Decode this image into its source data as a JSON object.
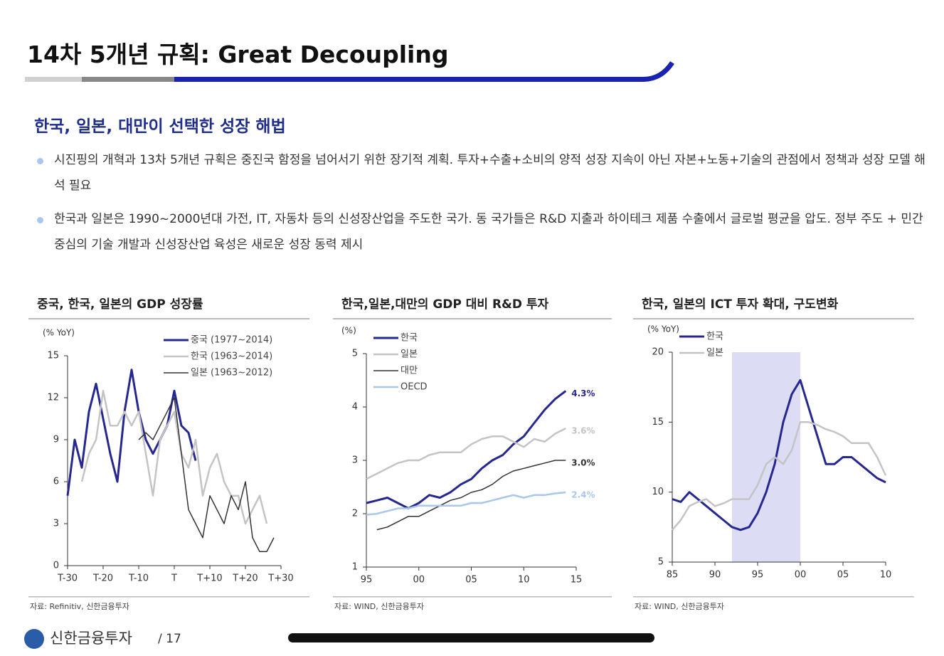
{
  "header": {
    "title": "14차 5개년 규획: Great Decoupling"
  },
  "section": {
    "heading": "한국, 일본, 대만이 선택한 성장 해법",
    "bullets": [
      "시진핑의 개혁과 13차 5개년 규획은 중진국 함정을 넘어서기 위한 장기적 계획. 투자+수출+소비의 양적 성장 지속이 아닌 자본+노동+기술의 관점에서 정책과 성장 모델 해석 필요",
      "한국과 일본은 1990~2000년대 가전, IT, 자동차 등의 신성장산업을 주도한 국가. 동 국가들은 R&D 지출과 하이테크 제품 수출에서 글로벌 평균을 압도. 정부 주도 + 민간 중심의 기술 개발과 신성장산업 육성은 새로운 성장 동력 제시"
    ]
  },
  "chart_data": [
    {
      "type": "line",
      "title": "중국, 한국, 일본의 GDP 성장률",
      "y_label": "(% YoY)",
      "source": "자료: Refinitiv, 신한금융투자",
      "legend": "upper right",
      "x": [
        -30,
        -28,
        -26,
        -24,
        -22,
        -20,
        -18,
        -16,
        -14,
        -12,
        -10,
        -8,
        -6,
        -4,
        -2,
        0,
        2,
        4,
        6,
        8,
        10,
        12,
        14,
        16,
        18,
        20,
        22,
        24,
        26,
        28,
        30
      ],
      "xlim": [
        -30,
        30
      ],
      "xticks": [
        {
          "value": -30,
          "label": "T-30"
        },
        {
          "value": -20,
          "label": "T-20"
        },
        {
          "value": -10,
          "label": "T-10"
        },
        {
          "value": 0,
          "label": "T"
        },
        {
          "value": 10,
          "label": "T+10"
        },
        {
          "value": 20,
          "label": "T+20"
        },
        {
          "value": 30,
          "label": "T+30"
        }
      ],
      "ylim": [
        0,
        15
      ],
      "yticks": [
        0,
        3,
        6,
        9,
        12,
        15
      ],
      "series": [
        {
          "name": "중국 (1977~2014)",
          "color": "#26278f",
          "width": 3,
          "values": [
            5,
            9,
            7,
            11,
            13,
            10.5,
            8,
            6,
            11,
            14,
            11,
            9,
            8,
            9,
            10,
            12.5,
            10,
            9.5,
            7.5,
            null,
            null,
            null,
            null,
            null,
            null,
            null,
            null,
            null,
            null,
            null,
            null
          ]
        },
        {
          "name": "한국 (1963~2014)",
          "color": "#c4c4c4",
          "width": 2.5,
          "values": [
            null,
            null,
            6,
            8,
            9,
            12.5,
            10,
            10,
            11,
            10,
            11,
            8,
            5,
            9,
            10,
            11,
            8,
            7,
            9,
            5,
            7,
            8,
            6,
            5,
            5,
            3,
            4,
            5,
            3,
            null,
            null
          ]
        },
        {
          "name": "일본 (1963~2012)",
          "color": "#333333",
          "width": 1.5,
          "values": [
            null,
            null,
            null,
            null,
            null,
            null,
            null,
            null,
            null,
            null,
            9,
            9.5,
            9,
            10,
            11,
            12,
            8,
            4,
            3,
            2,
            5,
            4,
            3,
            5,
            4,
            6,
            2,
            1,
            1,
            2,
            null
          ]
        }
      ]
    },
    {
      "type": "line",
      "title": "한국,일본,대만의 GDP 대비 R&D 투자",
      "y_label": "(%)",
      "source": "자료: WIND, 신한금융투자",
      "legend": "upper left",
      "x": [
        1995,
        1996,
        1997,
        1998,
        1999,
        2000,
        2001,
        2002,
        2003,
        2004,
        2005,
        2006,
        2007,
        2008,
        2009,
        2010,
        2011,
        2012,
        2013,
        2014
      ],
      "xlim": [
        1995,
        2015
      ],
      "xticks": [
        {
          "value": 1995,
          "label": "95"
        },
        {
          "value": 2000,
          "label": "00"
        },
        {
          "value": 2005,
          "label": "05"
        },
        {
          "value": 2010,
          "label": "10"
        },
        {
          "value": 2015,
          "label": "15"
        }
      ],
      "ylim": [
        1,
        5
      ],
      "yticks": [
        1,
        2,
        3,
        4,
        5
      ],
      "series": [
        {
          "name": "한국",
          "color": "#26278f",
          "width": 3,
          "values": [
            2.2,
            2.25,
            2.3,
            2.2,
            2.1,
            2.2,
            2.35,
            2.3,
            2.4,
            2.55,
            2.65,
            2.85,
            3.0,
            3.1,
            3.3,
            3.45,
            3.7,
            3.95,
            4.15,
            4.3
          ],
          "value_labels": [
            null,
            null,
            null,
            null,
            null,
            null,
            null,
            null,
            null,
            null,
            null,
            null,
            null,
            null,
            null,
            null,
            null,
            null,
            null,
            "4.3%"
          ]
        },
        {
          "name": "일본",
          "color": "#c4c4c4",
          "width": 2.5,
          "values": [
            2.65,
            2.75,
            2.85,
            2.95,
            3.0,
            3.0,
            3.1,
            3.15,
            3.15,
            3.15,
            3.3,
            3.4,
            3.45,
            3.45,
            3.35,
            3.25,
            3.4,
            3.35,
            3.5,
            3.6
          ],
          "value_labels": [
            null,
            null,
            null,
            null,
            null,
            null,
            null,
            null,
            null,
            null,
            null,
            null,
            null,
            null,
            null,
            null,
            null,
            null,
            null,
            "3.6%"
          ]
        },
        {
          "name": "대만",
          "color": "#333333",
          "width": 1.5,
          "values": [
            null,
            1.7,
            1.75,
            1.85,
            1.95,
            1.95,
            2.05,
            2.15,
            2.25,
            2.3,
            2.4,
            2.45,
            2.55,
            2.7,
            2.8,
            2.85,
            2.9,
            2.95,
            3.0,
            3.0
          ],
          "value_labels": [
            null,
            null,
            null,
            null,
            null,
            null,
            null,
            null,
            null,
            null,
            null,
            null,
            null,
            null,
            null,
            null,
            null,
            null,
            null,
            "3.0%"
          ]
        },
        {
          "name": "OECD",
          "color": "#a9c6ec",
          "width": 2.5,
          "values": [
            1.98,
            2.0,
            2.05,
            2.1,
            2.1,
            2.15,
            2.15,
            2.15,
            2.15,
            2.15,
            2.2,
            2.2,
            2.25,
            2.3,
            2.35,
            2.3,
            2.35,
            2.35,
            2.38,
            2.4
          ],
          "value_labels": [
            null,
            null,
            null,
            null,
            null,
            null,
            null,
            null,
            null,
            null,
            null,
            null,
            null,
            null,
            null,
            null,
            null,
            null,
            null,
            "2.4%"
          ]
        }
      ]
    },
    {
      "type": "line",
      "title": "한국, 일본의 ICT 투자 확대, 구도변화",
      "y_label": "(% YoY)",
      "source": "자료: WIND, 신한금융투자",
      "legend": "upper left",
      "x": [
        1985,
        1986,
        1987,
        1988,
        1989,
        1990,
        1991,
        1992,
        1993,
        1994,
        1995,
        1996,
        1997,
        1998,
        1999,
        2000,
        2001,
        2002,
        2003,
        2004,
        2005,
        2006,
        2007,
        2008,
        2009,
        2010
      ],
      "xlim": [
        1985,
        2010
      ],
      "xticks": [
        {
          "value": 1985,
          "label": "85"
        },
        {
          "value": 1990,
          "label": "90"
        },
        {
          "value": 1995,
          "label": "95"
        },
        {
          "value": 2000,
          "label": "00"
        },
        {
          "value": 2005,
          "label": "05"
        },
        {
          "value": 2010,
          "label": "10"
        }
      ],
      "ylim": [
        5,
        20
      ],
      "yticks": [
        5,
        10,
        15,
        20
      ],
      "highlight_x": [
        1992,
        2000
      ],
      "series": [
        {
          "name": "한국",
          "color": "#26278f",
          "width": 3,
          "values": [
            9.5,
            9.3,
            10,
            9.5,
            9,
            8.5,
            8,
            7.5,
            7.3,
            7.5,
            8.5,
            10,
            12,
            15,
            17,
            18,
            16,
            14,
            12,
            12,
            12.5,
            12.5,
            12,
            11.5,
            11,
            10.7
          ]
        },
        {
          "name": "일본",
          "color": "#c4c4c4",
          "width": 2.5,
          "values": [
            7.3,
            8,
            9,
            9.3,
            9.5,
            9,
            9.2,
            9.5,
            9.5,
            9.5,
            10.5,
            12,
            12.5,
            12,
            13,
            15,
            15,
            14.8,
            14.5,
            14.3,
            14,
            13.5,
            13.5,
            13.5,
            12.5,
            11.2
          ]
        }
      ]
    }
  ],
  "footer": {
    "brand": "신한금융투자",
    "page": "/ 17"
  }
}
